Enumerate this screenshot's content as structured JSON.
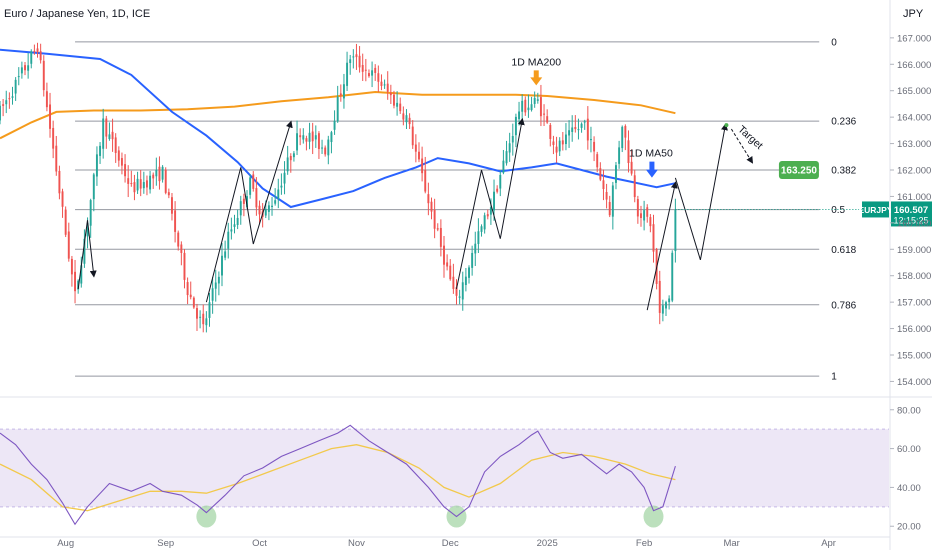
{
  "header": {
    "symbol_title": "Euro / Japanese Yen, 1D, ICE",
    "currency": "JPY"
  },
  "colors": {
    "bull": "#26a69a",
    "bear": "#ef5350",
    "ma50": "#2962ff",
    "ma200": "#f59b1c",
    "fib_line": "#9598a1",
    "rsi_line": "#7e57c2",
    "rsi_ma": "#f2c94c",
    "rsi_band": "#ede7f6",
    "target_badge": "#4caf50",
    "price_badge": "#089981",
    "oversold_marker": "#a5d6a7"
  },
  "chart_data": {
    "type": "candlestick",
    "instrument": "EURJPY",
    "timeframe": "1D",
    "ylim": [
      153.6,
      167.6
    ],
    "y_ticks": [
      154,
      155,
      156,
      157,
      158,
      159,
      160,
      161,
      162,
      163,
      164,
      165,
      166,
      167
    ],
    "y_tick_labels": [
      "154.000",
      "155.000",
      "156.000",
      "157.000",
      "158.000",
      "159.000",
      "160.000",
      "161.000",
      "162.000",
      "163.000",
      "164.000",
      "165.000",
      "166.000",
      "167.000"
    ],
    "x_labels": [
      {
        "day": 21,
        "label": "Aug"
      },
      {
        "day": 53,
        "label": "Sep"
      },
      {
        "day": 83,
        "label": "Oct"
      },
      {
        "day": 114,
        "label": "Nov"
      },
      {
        "day": 144,
        "label": "Dec"
      },
      {
        "day": 175,
        "label": "2025"
      },
      {
        "day": 206,
        "label": "Feb"
      },
      {
        "day": 234,
        "label": "Mar"
      },
      {
        "day": 265,
        "label": "Apr"
      }
    ],
    "x_range_days": [
      0,
      284
    ],
    "candle_trajectory": [
      [
        0,
        164.2
      ],
      [
        12,
        166.7
      ],
      [
        17,
        162.8
      ],
      [
        24,
        157.2
      ],
      [
        33,
        163.8
      ],
      [
        42,
        161.3
      ],
      [
        52,
        161.9
      ],
      [
        60,
        157.5
      ],
      [
        65,
        156.0
      ],
      [
        73,
        159.5
      ],
      [
        80,
        161.5
      ],
      [
        84,
        160.2
      ],
      [
        88,
        161.0
      ],
      [
        96,
        163.5
      ],
      [
        104,
        162.8
      ],
      [
        112,
        166.3
      ],
      [
        121,
        165.4
      ],
      [
        130,
        164.0
      ],
      [
        140,
        159.5
      ],
      [
        146,
        157.0
      ],
      [
        153,
        159.5
      ],
      [
        158,
        161.0
      ],
      [
        166,
        164.3
      ],
      [
        172,
        164.6
      ],
      [
        178,
        162.8
      ],
      [
        187,
        163.8
      ],
      [
        195,
        160.5
      ],
      [
        199,
        163.8
      ],
      [
        204,
        160.5
      ],
      [
        208,
        160.0
      ],
      [
        211,
        156.5
      ],
      [
        214,
        157.2
      ],
      [
        216,
        160.5
      ]
    ],
    "ma50": [
      [
        -5,
        166.6
      ],
      [
        15,
        166.4
      ],
      [
        32,
        166.2
      ],
      [
        42,
        165.6
      ],
      [
        55,
        164.2
      ],
      [
        66,
        163.3
      ],
      [
        76,
        162.3
      ],
      [
        84,
        161.3
      ],
      [
        93,
        160.6
      ],
      [
        103,
        160.9
      ],
      [
        113,
        161.2
      ],
      [
        123,
        161.7
      ],
      [
        133,
        162.1
      ],
      [
        140,
        162.45
      ],
      [
        150,
        162.25
      ],
      [
        160,
        161.95
      ],
      [
        170,
        162.1
      ],
      [
        178,
        162.25
      ],
      [
        186,
        162.0
      ],
      [
        194,
        161.75
      ],
      [
        202,
        161.55
      ],
      [
        210,
        161.35
      ],
      [
        216,
        161.5
      ]
    ],
    "ma200": [
      [
        0,
        163.2
      ],
      [
        10,
        163.8
      ],
      [
        18,
        164.2
      ],
      [
        30,
        164.25
      ],
      [
        45,
        164.25
      ],
      [
        60,
        164.3
      ],
      [
        75,
        164.4
      ],
      [
        90,
        164.6
      ],
      [
        105,
        164.75
      ],
      [
        120,
        164.95
      ],
      [
        135,
        164.85
      ],
      [
        150,
        164.85
      ],
      [
        165,
        164.85
      ],
      [
        175,
        164.8
      ],
      [
        190,
        164.65
      ],
      [
        205,
        164.45
      ],
      [
        216,
        164.15
      ]
    ],
    "last_price": "160.507",
    "ticker": "EURJPY",
    "countdown": "12:15:25",
    "fib_levels": [
      {
        "label": "0",
        "price": 166.85
      },
      {
        "label": "0.236",
        "price": 163.85
      },
      {
        "label": "0.382",
        "price": 162.0
      },
      {
        "label": "0.5",
        "price": 160.5
      },
      {
        "label": "0.618",
        "price": 159.0
      },
      {
        "label": "0.786",
        "price": 156.9
      },
      {
        "label": "1",
        "price": 154.2
      }
    ],
    "fib_start_day": 24,
    "fib_end_day": 262,
    "annotations": {
      "ma200_label": "1D MA200",
      "ma50_label": "1D MA50",
      "target_label": "Target",
      "target_price": "163.250"
    },
    "ma200_arrow": {
      "day": 171.5,
      "price": 165.2
    },
    "ma50_arrow": {
      "day": 208.5,
      "price": 161.6
    },
    "target_arrow": {
      "day": 240.5,
      "price": 162.3
    },
    "target_badge_anchor": {
      "day": 244,
      "price": 162.0
    },
    "projection": [
      [
        216,
        161.7
      ],
      [
        224,
        158.6
      ],
      [
        232,
        163.7
      ]
    ],
    "bars_pattern": [
      [
        [
          25,
          157.5
        ],
        [
          28,
          160.1
        ],
        [
          30,
          158.0
        ]
      ],
      [
        [
          66,
          157.0
        ],
        [
          77,
          162.1
        ],
        [
          81,
          159.2
        ],
        [
          93,
          163.8
        ]
      ],
      [
        [
          146,
          157.5
        ],
        [
          154,
          162.0
        ],
        [
          160,
          159.4
        ],
        [
          167,
          163.9
        ]
      ],
      [
        [
          207,
          156.7
        ],
        [
          216,
          161.5
        ]
      ]
    ],
    "rsi": {
      "ylim": [
        16,
        84
      ],
      "band": [
        30,
        70
      ],
      "ticks": [
        20,
        40,
        60,
        80
      ],
      "tick_labels": [
        "20.00",
        "40.00",
        "60.00",
        "80.00"
      ],
      "values": [
        [
          0,
          68
        ],
        [
          5,
          62
        ],
        [
          10,
          52
        ],
        [
          15,
          44
        ],
        [
          20,
          32
        ],
        [
          24,
          21
        ],
        [
          28,
          30
        ],
        [
          35,
          42
        ],
        [
          42,
          38
        ],
        [
          48,
          42
        ],
        [
          52,
          38
        ],
        [
          58,
          36
        ],
        [
          63,
          31
        ],
        [
          66,
          27
        ],
        [
          72,
          36
        ],
        [
          78,
          46
        ],
        [
          84,
          50
        ],
        [
          90,
          56
        ],
        [
          96,
          60
        ],
        [
          102,
          64
        ],
        [
          108,
          68
        ],
        [
          112,
          72
        ],
        [
          118,
          64
        ],
        [
          124,
          58
        ],
        [
          130,
          52
        ],
        [
          137,
          40
        ],
        [
          142,
          30
        ],
        [
          146,
          25
        ],
        [
          150,
          30
        ],
        [
          155,
          48
        ],
        [
          160,
          56
        ],
        [
          166,
          62
        ],
        [
          170,
          67
        ],
        [
          172,
          69
        ],
        [
          176,
          58
        ],
        [
          180,
          55
        ],
        [
          186,
          57
        ],
        [
          190,
          52
        ],
        [
          194,
          47
        ],
        [
          198,
          52
        ],
        [
          202,
          48
        ],
        [
          206,
          40
        ],
        [
          209,
          28
        ],
        [
          212,
          30
        ],
        [
          216,
          51
        ]
      ],
      "ma": [
        [
          0,
          52
        ],
        [
          10,
          44
        ],
        [
          20,
          30
        ],
        [
          28,
          28
        ],
        [
          38,
          33
        ],
        [
          48,
          38
        ],
        [
          58,
          38
        ],
        [
          66,
          37
        ],
        [
          76,
          42
        ],
        [
          86,
          48
        ],
        [
          96,
          54
        ],
        [
          106,
          60
        ],
        [
          114,
          62
        ],
        [
          124,
          58
        ],
        [
          134,
          50
        ],
        [
          142,
          40
        ],
        [
          150,
          35
        ],
        [
          160,
          42
        ],
        [
          170,
          54
        ],
        [
          180,
          58
        ],
        [
          190,
          56
        ],
        [
          200,
          52
        ],
        [
          208,
          47
        ],
        [
          216,
          44
        ]
      ],
      "oversold_markers": [
        66,
        146,
        209
      ]
    }
  }
}
